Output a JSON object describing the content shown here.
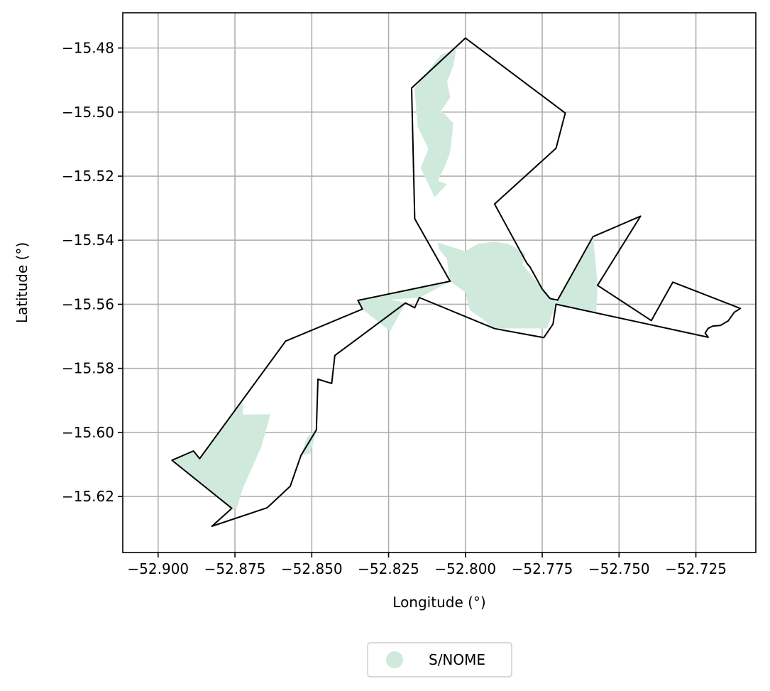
{
  "chart_data": {
    "type": "map",
    "xlabel": "Longitude (°)",
    "ylabel": "Latitude (°)",
    "xlim": [
      -52.9115,
      -52.7055
    ],
    "ylim": [
      -15.6375,
      -15.469
    ],
    "grid": true,
    "legend_placement": "bottom-center",
    "x_ticks": [
      {
        "value": -52.9,
        "label": "−52.900"
      },
      {
        "value": -52.875,
        "label": "−52.875"
      },
      {
        "value": -52.85,
        "label": "−52.850"
      },
      {
        "value": -52.825,
        "label": "−52.825"
      },
      {
        "value": -52.8,
        "label": "−52.800"
      },
      {
        "value": -52.775,
        "label": "−52.775"
      },
      {
        "value": -52.75,
        "label": "−52.750"
      },
      {
        "value": -52.725,
        "label": "−52.725"
      }
    ],
    "y_ticks": [
      {
        "value": -15.48,
        "label": "−15.48"
      },
      {
        "value": -15.5,
        "label": "−15.50"
      },
      {
        "value": -15.52,
        "label": "−15.52"
      },
      {
        "value": -15.54,
        "label": "−15.54"
      },
      {
        "value": -15.56,
        "label": "−15.56"
      },
      {
        "value": -15.58,
        "label": "−15.58"
      },
      {
        "value": -15.6,
        "label": "−15.60"
      },
      {
        "value": -15.62,
        "label": "−15.62"
      }
    ],
    "legend": [
      {
        "label": "S/NOME",
        "color": "#cfeadc"
      }
    ],
    "fill_color": "#cfeadc",
    "boundary_color": "#000000",
    "boundary": [
      [
        -52.8,
        -15.4769
      ],
      [
        -52.7675,
        -15.5003
      ],
      [
        -52.7705,
        -15.5113
      ],
      [
        -52.7905,
        -15.5287
      ],
      [
        -52.78,
        -15.5472
      ],
      [
        -52.779,
        -15.5483
      ],
      [
        -52.775,
        -15.5553
      ],
      [
        -52.7725,
        -15.5582
      ],
      [
        -52.77,
        -15.5587
      ],
      [
        -52.7585,
        -15.5389
      ],
      [
        -52.743,
        -15.5325
      ],
      [
        -52.757,
        -15.5541
      ],
      [
        -52.7395,
        -15.5651
      ],
      [
        -52.7325,
        -15.5531
      ],
      [
        -52.7105,
        -15.5613
      ],
      [
        -52.7125,
        -15.5625
      ],
      [
        -52.7145,
        -15.5652
      ],
      [
        -52.717,
        -15.5666
      ],
      [
        -52.7195,
        -15.5668
      ],
      [
        -52.721,
        -15.5675
      ],
      [
        -52.722,
        -15.569
      ],
      [
        -52.721,
        -15.5703
      ],
      [
        -52.7705,
        -15.56
      ],
      [
        -52.7715,
        -15.5662
      ],
      [
        -52.7745,
        -15.5704
      ],
      [
        -52.7905,
        -15.5676
      ],
      [
        -52.815,
        -15.5579
      ],
      [
        -52.8165,
        -15.5611
      ],
      [
        -52.8195,
        -15.5596
      ],
      [
        -52.8425,
        -15.576
      ],
      [
        -52.8435,
        -15.5847
      ],
      [
        -52.848,
        -15.5834
      ],
      [
        -52.8485,
        -15.5992
      ],
      [
        -52.8535,
        -15.6072
      ],
      [
        -52.857,
        -15.6168
      ],
      [
        -52.8645,
        -15.6235
      ],
      [
        -52.8825,
        -15.6293
      ],
      [
        -52.876,
        -15.6237
      ],
      [
        -52.8955,
        -15.6087
      ],
      [
        -52.8885,
        -15.6058
      ],
      [
        -52.8865,
        -15.6082
      ],
      [
        -52.8585,
        -15.5715
      ],
      [
        -52.8335,
        -15.5615
      ],
      [
        -52.835,
        -15.5588
      ],
      [
        -52.805,
        -15.5528
      ],
      [
        -52.8165,
        -15.5333
      ],
      [
        -52.8175,
        -15.4925
      ],
      [
        -52.8,
        -15.4769
      ]
    ],
    "fill_polygons": [
      [
        [
          -52.8165,
          -15.4925
        ],
        [
          -52.808,
          -15.4822
        ],
        [
          -52.803,
          -15.4803
        ],
        [
          -52.804,
          -15.4855
        ],
        [
          -52.806,
          -15.4905
        ],
        [
          -52.805,
          -15.4955
        ],
        [
          -52.808,
          -15.4995
        ],
        [
          -52.804,
          -15.5035
        ],
        [
          -52.805,
          -15.5125
        ],
        [
          -52.807,
          -15.5175
        ],
        [
          -52.809,
          -15.5215
        ],
        [
          -52.806,
          -15.5225
        ],
        [
          -52.81,
          -15.5265
        ],
        [
          -52.8145,
          -15.5175
        ],
        [
          -52.812,
          -15.5115
        ],
        [
          -52.8155,
          -15.5045
        ]
      ],
      [
        [
          -52.809,
          -15.5408
        ],
        [
          -52.8,
          -15.5435
        ],
        [
          -52.796,
          -15.5412
        ],
        [
          -52.7905,
          -15.5405
        ],
        [
          -52.786,
          -15.5412
        ],
        [
          -52.7805,
          -15.5442
        ],
        [
          -52.7815,
          -15.5475
        ],
        [
          -52.7765,
          -15.5535
        ],
        [
          -52.7705,
          -15.5595
        ],
        [
          -52.7735,
          -15.5675
        ],
        [
          -52.791,
          -15.5675
        ],
        [
          -52.794,
          -15.5648
        ],
        [
          -52.7985,
          -15.5618
        ],
        [
          -52.8,
          -15.5562
        ],
        [
          -52.805,
          -15.5528
        ],
        [
          -52.806,
          -15.5458
        ],
        [
          -52.8085,
          -15.5428
        ]
      ],
      [
        [
          -52.7585,
          -15.5389
        ],
        [
          -52.757,
          -15.5541
        ],
        [
          -52.7575,
          -15.5625
        ],
        [
          -52.7705,
          -15.56
        ],
        [
          -52.77,
          -15.5587
        ]
      ],
      [
        [
          -52.805,
          -15.5528
        ],
        [
          -52.835,
          -15.5588
        ],
        [
          -52.8335,
          -15.5615
        ],
        [
          -52.8245,
          -15.5683
        ],
        [
          -52.8195,
          -15.5596
        ],
        [
          -52.825,
          -15.5585
        ],
        [
          -52.815,
          -15.5579
        ]
      ],
      [
        [
          -52.876,
          -15.6237
        ],
        [
          -52.8955,
          -15.6087
        ],
        [
          -52.8885,
          -15.6058
        ],
        [
          -52.8865,
          -15.6082
        ],
        [
          -52.8725,
          -15.5905
        ],
        [
          -52.8725,
          -15.5945
        ],
        [
          -52.8635,
          -15.5944
        ],
        [
          -52.8665,
          -15.6045
        ],
        [
          -52.8725,
          -15.6175
        ],
        [
          -52.8745,
          -15.6237
        ]
      ],
      [
        [
          -52.8535,
          -15.6072
        ],
        [
          -52.8515,
          -15.6015
        ],
        [
          -52.8485,
          -15.5992
        ],
        [
          -52.8505,
          -15.6065
        ]
      ]
    ]
  }
}
